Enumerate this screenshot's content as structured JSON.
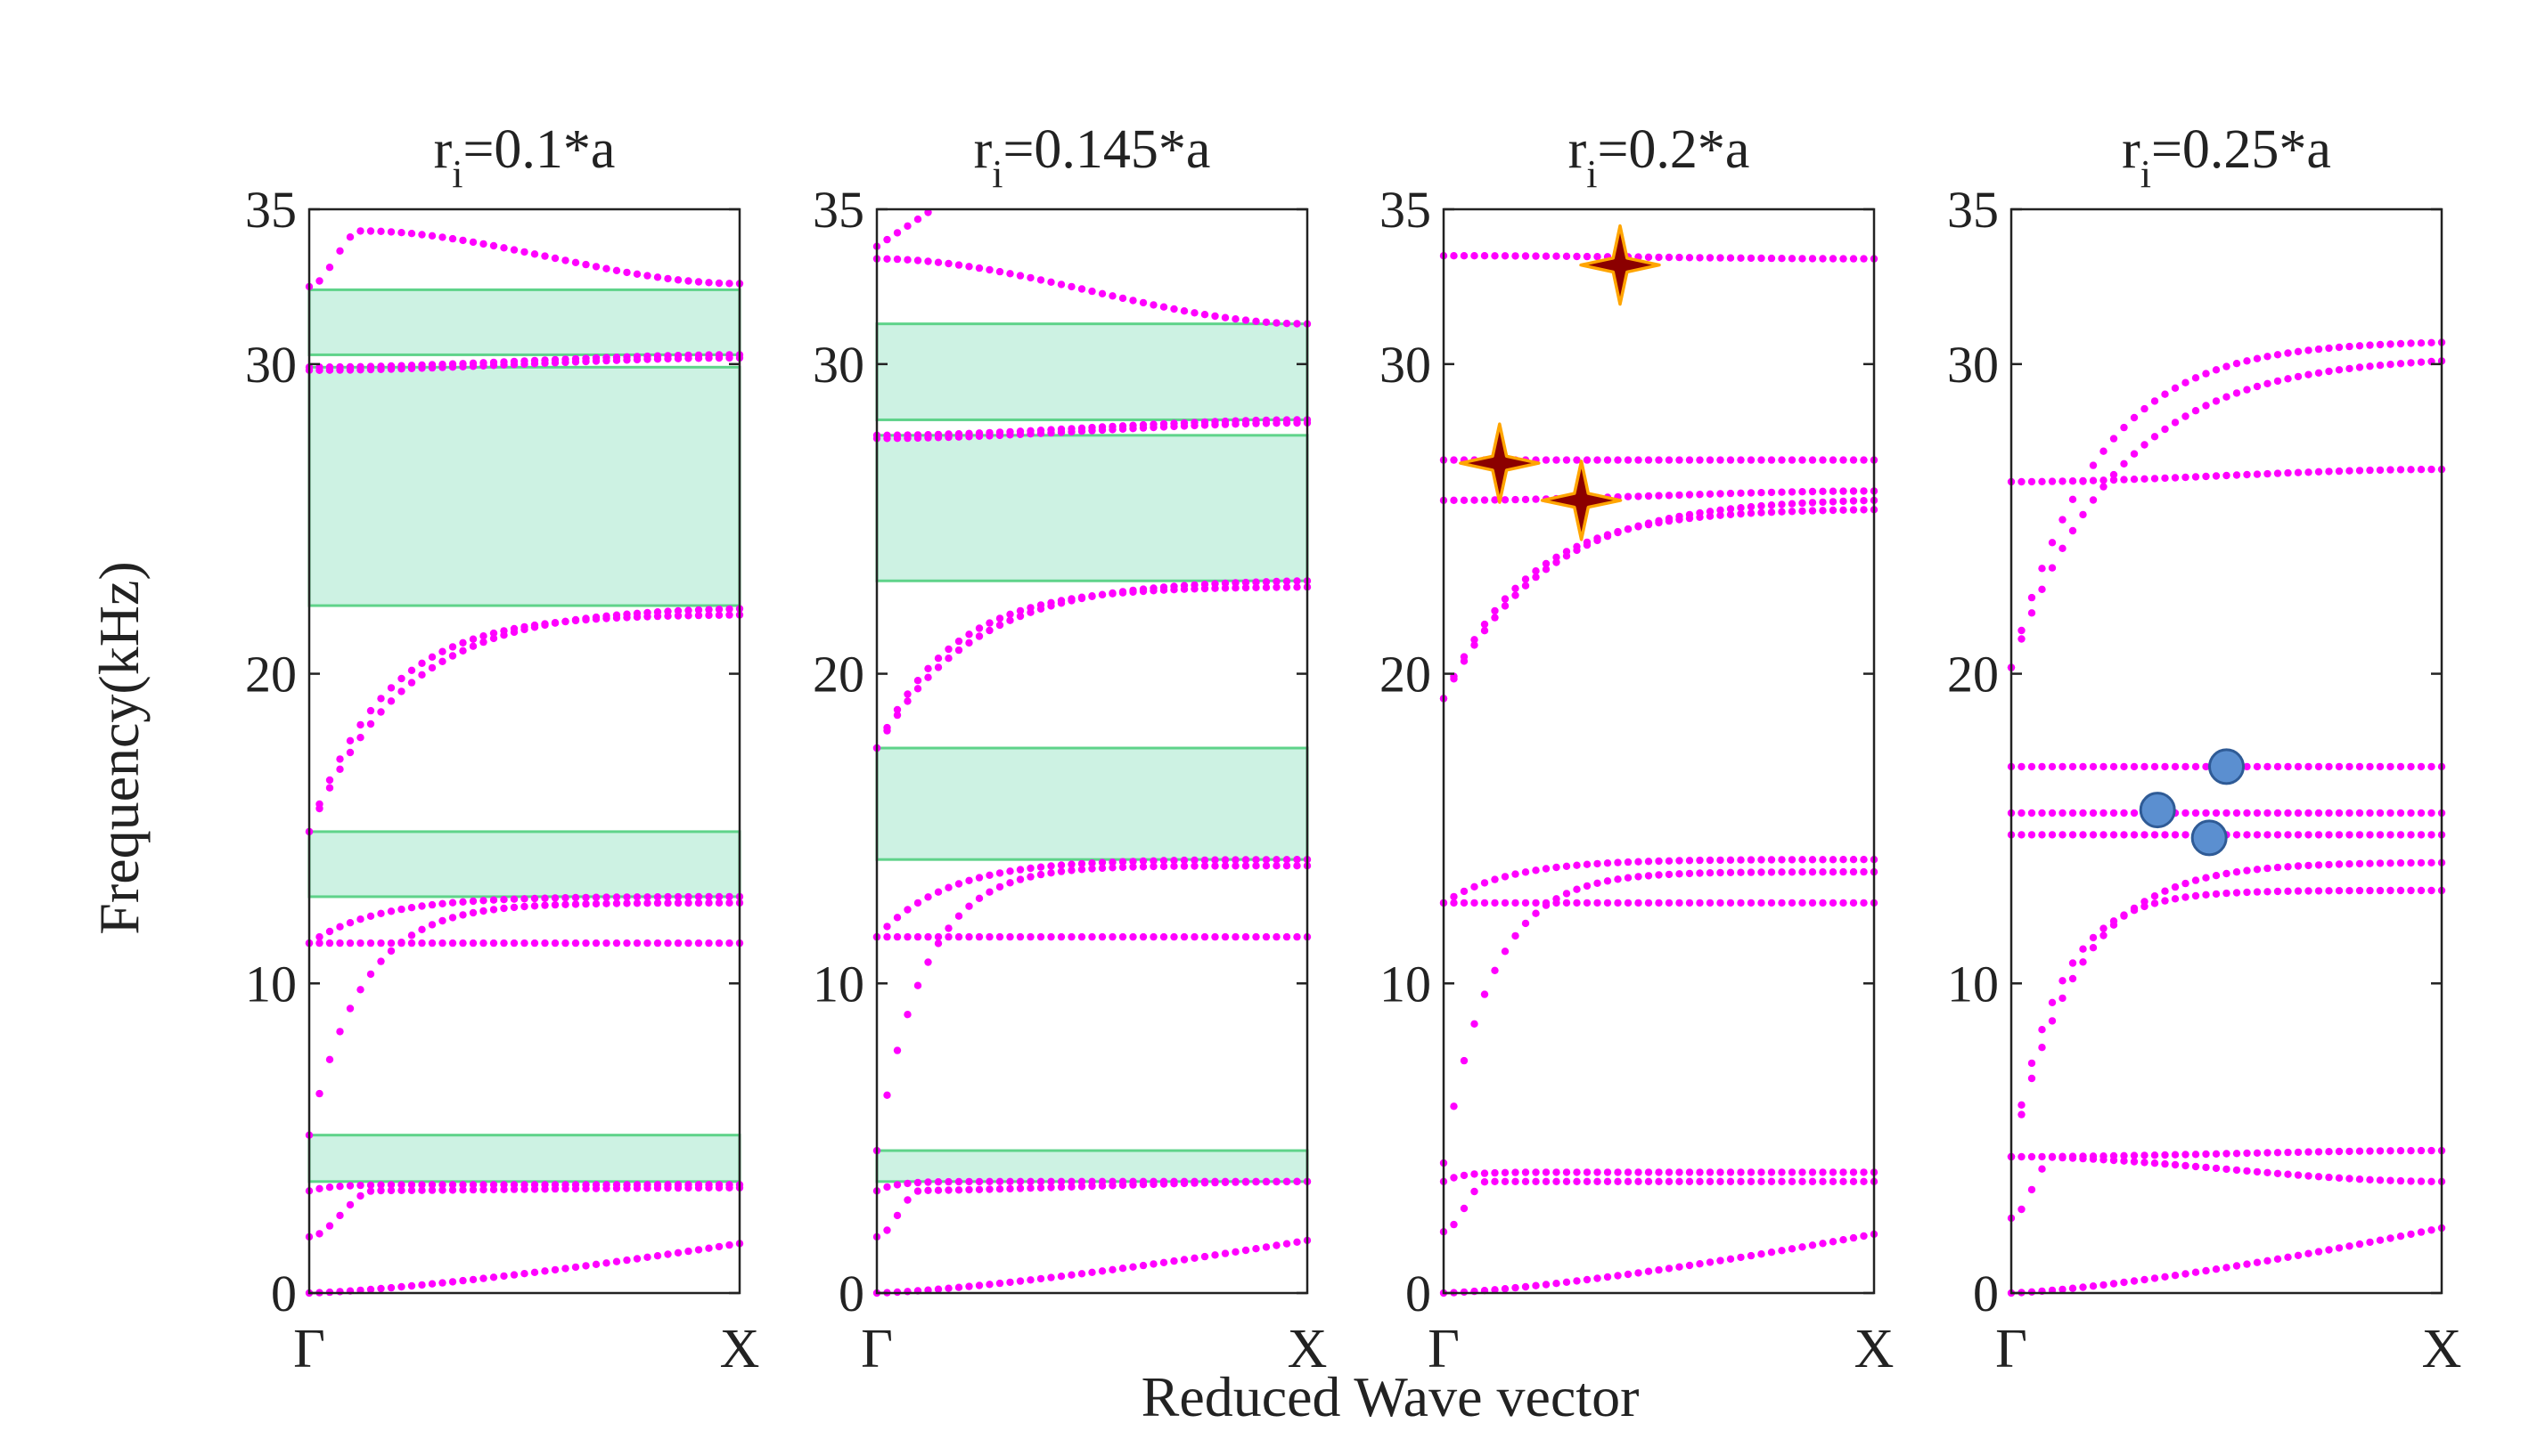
{
  "figure": {
    "ylabel": "Frequency(kHz)",
    "xlabel": "Reduced Wave vector"
  },
  "colors": {
    "band": "#ff00ff",
    "gap_fill": "#cdf2e3",
    "gap_stroke": "#5fd38a",
    "star_fill": "#8b0000",
    "star_edge": "#ffa500",
    "circle_fill": "#5b8fd0",
    "circle_edge": "#2f5b96"
  },
  "chart_data": [
    {
      "type": "scatter",
      "title_base": "r",
      "title_sub": "i",
      "title_rest": "=0.1*a",
      "ylim": [
        0,
        35
      ],
      "yticks": [
        "0",
        "10",
        "20",
        "30",
        "35"
      ],
      "xticks": [
        "Γ",
        "X"
      ],
      "band_gaps": [
        [
          3.6,
          5.1
        ],
        [
          12.8,
          14.9
        ],
        [
          22.2,
          29.9
        ],
        [
          30.3,
          32.4
        ]
      ],
      "bands": [
        {
          "kind": "acoustic",
          "end": 1.6
        },
        {
          "kind": "flat",
          "start": 3.3,
          "end": 3.4,
          "knee": 0.15
        },
        {
          "kind": "rise",
          "start": 3.3,
          "end": 3.5,
          "knee": 0.1
        },
        {
          "kind": "flat",
          "start": 11.3,
          "end": 11.3
        },
        {
          "kind": "rise",
          "start": 5.1,
          "end": 12.6,
          "knee": 0.22
        },
        {
          "kind": "rise",
          "start": 11.3,
          "end": 12.8,
          "knee": 0.3
        },
        {
          "kind": "rise",
          "start": 14.9,
          "end": 21.9,
          "knee": 0.32
        },
        {
          "kind": "rise",
          "start": 14.9,
          "end": 22.1,
          "knee": 0.4
        },
        {
          "kind": "flat",
          "start": 29.8,
          "end": 30.2
        },
        {
          "kind": "flat",
          "start": 29.9,
          "end": 30.3
        },
        {
          "kind": "hump",
          "start": 32.5,
          "peak": 34.3,
          "end": 32.6
        }
      ],
      "markers": []
    },
    {
      "type": "scatter",
      "title_base": "r",
      "title_sub": "i",
      "title_rest": "=0.145*a",
      "ylim": [
        0,
        35
      ],
      "yticks": [
        "0",
        "10",
        "20",
        "30",
        "35"
      ],
      "xticks": [
        "Γ",
        "X"
      ],
      "band_gaps": [
        [
          3.6,
          4.6
        ],
        [
          14.0,
          17.6
        ],
        [
          23.0,
          27.7
        ],
        [
          28.2,
          31.3
        ]
      ],
      "bands": [
        {
          "kind": "acoustic",
          "end": 1.7
        },
        {
          "kind": "flat",
          "start": 3.3,
          "end": 3.6,
          "knee": 0.1
        },
        {
          "kind": "rise",
          "start": 3.3,
          "end": 3.6,
          "knee": 0.08
        },
        {
          "kind": "flat",
          "start": 11.5,
          "end": 11.5
        },
        {
          "kind": "rise",
          "start": 4.6,
          "end": 13.8,
          "knee": 0.2
        },
        {
          "kind": "rise",
          "start": 11.5,
          "end": 14.0,
          "knee": 0.3
        },
        {
          "kind": "rise",
          "start": 17.6,
          "end": 22.8,
          "knee": 0.32
        },
        {
          "kind": "rise",
          "start": 17.6,
          "end": 23.0,
          "knee": 0.4
        },
        {
          "kind": "flat",
          "start": 27.6,
          "end": 28.1
        },
        {
          "kind": "flat",
          "start": 27.7,
          "end": 28.2
        },
        {
          "kind": "steep",
          "start": 33.8,
          "end": 35.0,
          "xend": 0.13
        },
        {
          "kind": "flat",
          "start": 33.4,
          "end": 31.3
        }
      ],
      "markers": []
    },
    {
      "type": "scatter",
      "title_base": "r",
      "title_sub": "i",
      "title_rest": "=0.2*a",
      "ylim": [
        0,
        35
      ],
      "yticks": [
        "0",
        "10",
        "20",
        "30",
        "35"
      ],
      "xticks": [
        "Γ",
        "X"
      ],
      "band_gaps": [],
      "bands": [
        {
          "kind": "acoustic",
          "end": 1.9
        },
        {
          "kind": "flat",
          "start": 3.6,
          "end": 3.6,
          "knee": 0.1
        },
        {
          "kind": "rise",
          "start": 3.6,
          "end": 3.9,
          "knee": 0.08
        },
        {
          "kind": "flat",
          "start": 12.6,
          "end": 12.6
        },
        {
          "kind": "rise",
          "start": 4.2,
          "end": 13.6,
          "knee": 0.2
        },
        {
          "kind": "rise",
          "start": 12.6,
          "end": 14.0,
          "knee": 0.28
        },
        {
          "kind": "rise",
          "start": 19.2,
          "end": 25.3,
          "knee": 0.35
        },
        {
          "kind": "rise",
          "start": 19.2,
          "end": 25.6,
          "knee": 0.42
        },
        {
          "kind": "flat",
          "start": 25.6,
          "end": 25.9
        },
        {
          "kind": "flat",
          "start": 26.9,
          "end": 26.9
        },
        {
          "kind": "flat",
          "start": 33.5,
          "end": 33.4
        }
      ],
      "markers": [
        {
          "shape": "star",
          "x": 0.13,
          "y": 26.8
        },
        {
          "shape": "star",
          "x": 0.32,
          "y": 25.6
        },
        {
          "shape": "star",
          "x": 0.41,
          "y": 33.2
        }
      ]
    },
    {
      "type": "scatter",
      "title_base": "r",
      "title_sub": "i",
      "title_rest": "=0.25*a",
      "ylim": [
        0,
        35
      ],
      "yticks": [
        "0",
        "10",
        "20",
        "30",
        "35"
      ],
      "xticks": [
        "Γ",
        "X"
      ],
      "band_gaps": [],
      "bands": [
        {
          "kind": "acoustic",
          "end": 2.1
        },
        {
          "kind": "flat",
          "start": 4.4,
          "end": 3.6,
          "knee": 0.1
        },
        {
          "kind": "flat",
          "start": 4.4,
          "end": 4.6
        },
        {
          "kind": "rise",
          "start": 4.4,
          "end": 13.0,
          "knee": 0.2
        },
        {
          "kind": "rise",
          "start": 4.4,
          "end": 13.9,
          "knee": 0.28
        },
        {
          "kind": "flat",
          "start": 14.8,
          "end": 14.8
        },
        {
          "kind": "flat",
          "start": 15.5,
          "end": 15.5
        },
        {
          "kind": "flat",
          "start": 17.0,
          "end": 17.0
        },
        {
          "kind": "rise",
          "start": 20.2,
          "end": 30.7,
          "knee": 0.36
        },
        {
          "kind": "rise",
          "start": 20.2,
          "end": 30.1,
          "knee": 0.45
        },
        {
          "kind": "flat",
          "start": 26.2,
          "end": 26.6
        }
      ],
      "markers": [
        {
          "shape": "circle",
          "x": 0.34,
          "y": 15.6
        },
        {
          "shape": "circle",
          "x": 0.46,
          "y": 14.7
        },
        {
          "shape": "circle",
          "x": 0.5,
          "y": 17.0
        }
      ]
    }
  ]
}
